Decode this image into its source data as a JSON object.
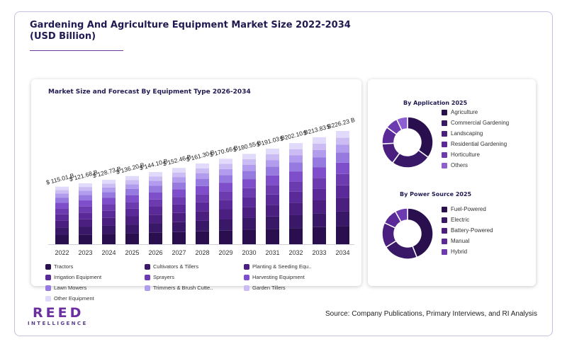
{
  "header": {
    "title_line1": "Gardening And Agriculture Equipment Market Size 2022-2034",
    "title_line2": "(USD Billion)"
  },
  "main_chart": {
    "title": "Market Size and Forecast By Equipment Type 2026-2034"
  },
  "colors": {
    "segments": [
      "#2a0f4f",
      "#3a1868",
      "#4a1f80",
      "#5a2a98",
      "#6d3bb0",
      "#7f4fcb",
      "#967ae0",
      "#b29cee",
      "#cbbcf3",
      "#e2dafa"
    ]
  },
  "chart_data": [
    {
      "type": "bar",
      "stacked": true,
      "title": "Market Size and Forecast By Equipment Type 2026-2034",
      "categories": [
        "2022",
        "2023",
        "2024",
        "2025",
        "2026",
        "2027",
        "2028",
        "2029",
        "2030",
        "2031",
        "2032",
        "2033",
        "2034"
      ],
      "totals": [
        115.01,
        121.68,
        128.73,
        136.2,
        144.1,
        152.46,
        161.3,
        170.66,
        180.55,
        191.03,
        202.1,
        213.83,
        226.23
      ],
      "total_labels": [
        "$ 115.01 B",
        "$ 121.68 B",
        "$ 128.73 B",
        "$ 136.20 B",
        "$ 144.10 B",
        "$ 152.46 B",
        "$ 161.30 B",
        "$ 170.66 B",
        "$ 180.55 B",
        "$ 191.03 B",
        "$ 202.10 B",
        "$ 213.83 B",
        "$ 226.23 B"
      ],
      "series": [
        {
          "name": "Tractors",
          "color": "#2a0f4f",
          "share": 0.16
        },
        {
          "name": "Cultivators & Tillers",
          "color": "#3a1868",
          "share": 0.13
        },
        {
          "name": "Planting & Seeding Equ..",
          "color": "#4a1f80",
          "share": 0.12
        },
        {
          "name": "Irrigation Equipment",
          "color": "#5a2a98",
          "share": 0.11
        },
        {
          "name": "Sprayers",
          "color": "#6d3bb0",
          "share": 0.1
        },
        {
          "name": "Harvesting Equipment",
          "color": "#7f4fcb",
          "share": 0.1
        },
        {
          "name": "Lawn Mowers",
          "color": "#967ae0",
          "share": 0.09
        },
        {
          "name": "Trimmers & Brush Cutte..",
          "color": "#b29cee",
          "share": 0.07
        },
        {
          "name": "Garden Tillers",
          "color": "#cbbcf3",
          "share": 0.06
        },
        {
          "name": "Other Equipment",
          "color": "#e2dafa",
          "share": 0.06
        }
      ],
      "ylim": [
        0,
        226.23
      ]
    },
    {
      "type": "pie",
      "donut": true,
      "title": "By Application 2025",
      "labels": [
        "Agriculture",
        "Commercial Gardening",
        "Landscaping",
        "Residential Gardening",
        "Horticulture",
        "Others"
      ],
      "values": [
        35,
        25,
        14,
        11,
        8,
        7
      ],
      "colors": [
        "#2a0f4f",
        "#3a1868",
        "#4a1f80",
        "#5a2a98",
        "#6d3bb0",
        "#8d5fd0"
      ]
    },
    {
      "type": "pie",
      "donut": true,
      "title": "By Power Source 2025",
      "labels": [
        "Fuel-Powered",
        "Electric",
        "Battery-Powered",
        "Manual",
        "Hybrid"
      ],
      "values": [
        44,
        22,
        16,
        10,
        8
      ],
      "colors": [
        "#2a0f4f",
        "#3a1868",
        "#4a1f80",
        "#5a2a98",
        "#6d3bb0"
      ]
    }
  ],
  "footer": {
    "logo_main": "REED",
    "logo_sub": "INTELLIGENCE",
    "source": "Source: Company Publications, Primary Interviews, and RI Analysis"
  }
}
